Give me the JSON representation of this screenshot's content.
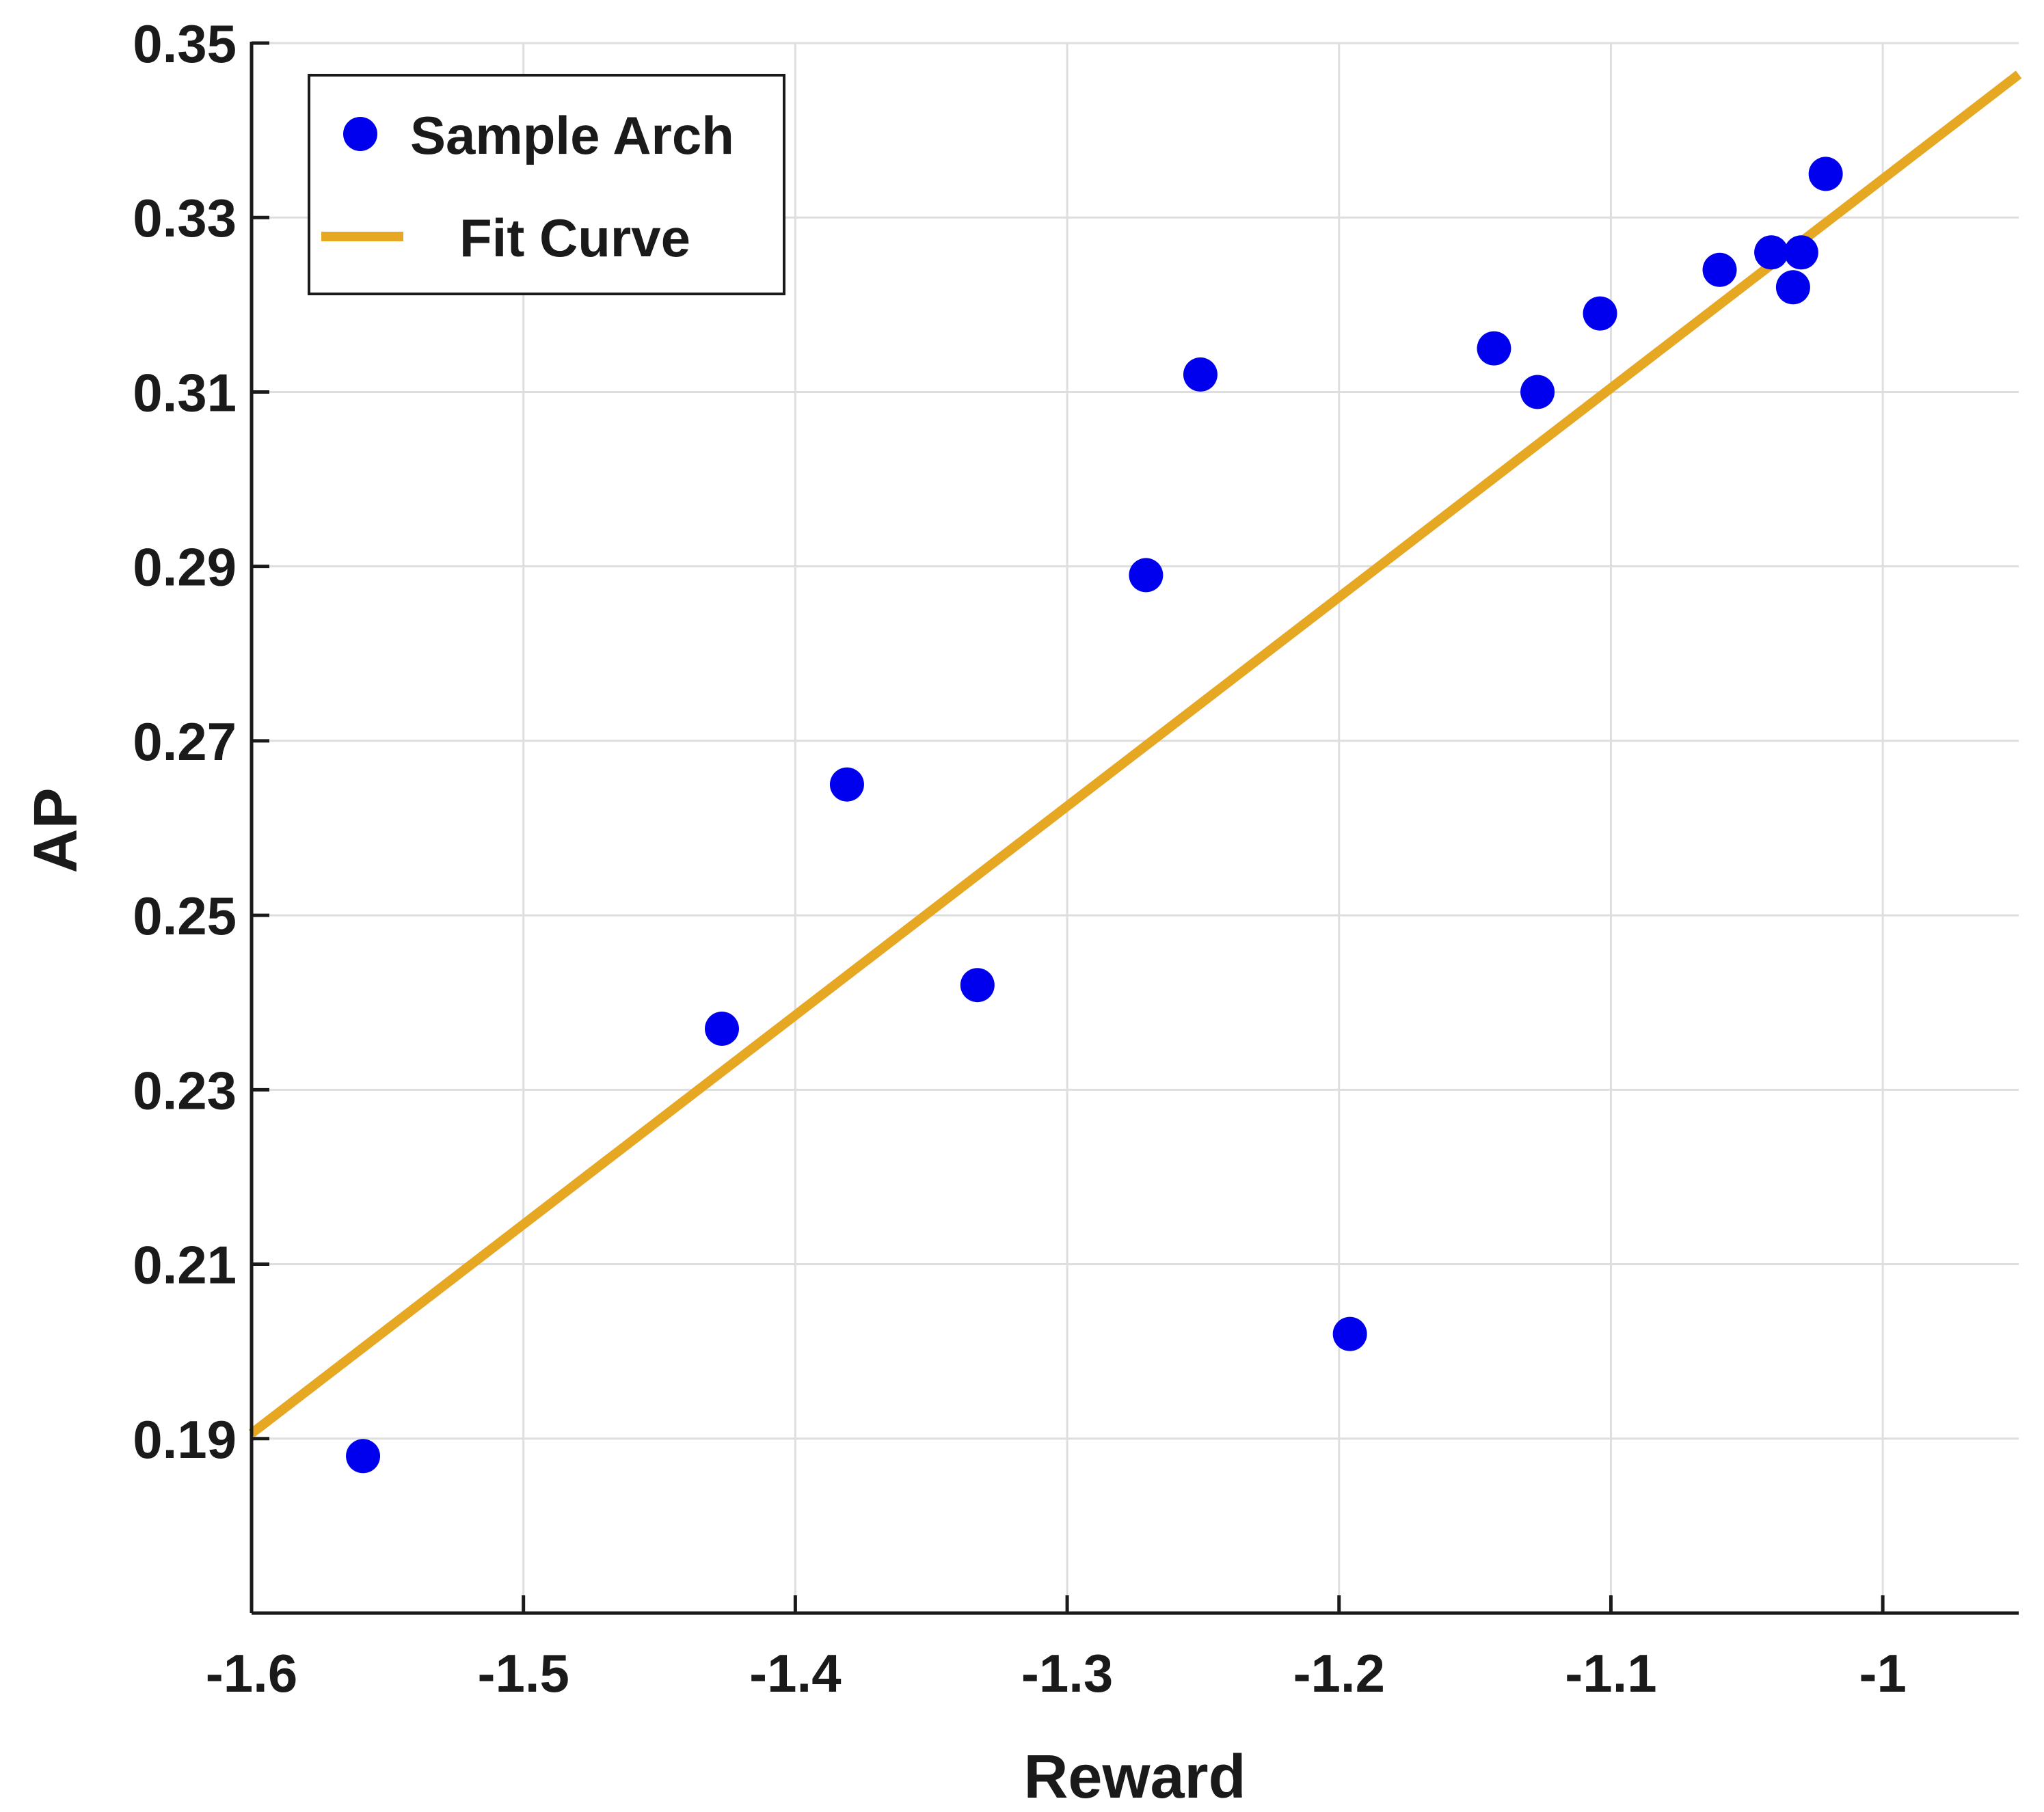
{
  "chart_data": {
    "type": "scatter",
    "title": "",
    "xlabel": "Reward",
    "ylabel": "AP",
    "xlim": [
      -1.6,
      -0.95
    ],
    "ylim": [
      0.17,
      0.35
    ],
    "grid": true,
    "legend_position": "top-left",
    "x_ticks": [
      -1.6,
      -1.5,
      -1.4,
      -1.3,
      -1.2,
      -1.1,
      -1
    ],
    "x_tick_labels": [
      "-1.6",
      "-1.5",
      "-1.4",
      "-1.3",
      "-1.2",
      "-1.1",
      "-1"
    ],
    "y_ticks": [
      0.19,
      0.21,
      0.23,
      0.25,
      0.27,
      0.29,
      0.31,
      0.33,
      0.35
    ],
    "y_tick_labels": [
      "0.19",
      "0.21",
      "0.23",
      "0.25",
      "0.27",
      "0.29",
      "0.31",
      "0.33",
      "0.35"
    ],
    "series": [
      {
        "name": "Sample Arch",
        "kind": "scatter",
        "color": "#0000ee",
        "points": [
          [
            -1.559,
            0.188
          ],
          [
            -1.427,
            0.237
          ],
          [
            -1.381,
            0.265
          ],
          [
            -1.333,
            0.242
          ],
          [
            -1.271,
            0.289
          ],
          [
            -1.251,
            0.312
          ],
          [
            -1.196,
            0.202
          ],
          [
            -1.143,
            0.315
          ],
          [
            -1.127,
            0.31
          ],
          [
            -1.104,
            0.319
          ],
          [
            -1.06,
            0.324
          ],
          [
            -1.041,
            0.326
          ],
          [
            -1.03,
            0.326
          ],
          [
            -1.033,
            0.322
          ],
          [
            -1.021,
            0.335
          ]
        ]
      },
      {
        "name": "Fit Curve",
        "kind": "line",
        "color": "#e6a723",
        "points": [
          [
            -1.6,
            0.1906
          ],
          [
            -0.95,
            0.3464
          ]
        ]
      }
    ]
  }
}
